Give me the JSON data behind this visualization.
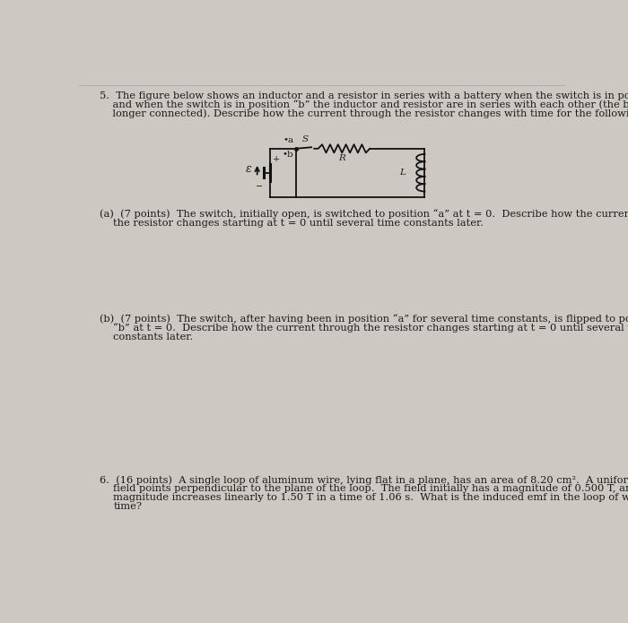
{
  "background_color": "#cdc9c2",
  "page_color": "#cdc9c2",
  "text_color": "#1a1a1a",
  "circuit_color": "#111111",
  "font_size_body": 8.2,
  "font_size_small": 7.5,
  "q5_line1": "5.  The figure below shows an inductor and a resistor in series with a battery when the switch is in position “a”",
  "q5_line2": "    and when the switch is in position “b” the inductor and resistor are in series with each other (the battery is no",
  "q5_line3": "    longer connected). Describe how the current through the resistor changes with time for the following situations:",
  "part_a": "(a)  (7 points)  The switch, initially open, is switched to position “a” at t = 0.  Describe how the current through\n    the resistor changes starting at t = 0 until several time constants later.",
  "part_b_1": "(b)  (7 points)  The switch, after having been in position “a” for several time constants, is flipped to position",
  "part_b_2": "    “b” at t = 0.  Describe how the current through the resistor changes starting at t = 0 until several time",
  "part_b_3": "    constants later.",
  "q6_1": "6.  (16 points)  A single loop of aluminum wire, lying flat in a plane, has an area of 8.20 cm².  A uniform magnetic",
  "q6_2": "    field points perpendicular to the plane of the loop.  The field initially has a magnitude of 0.500 T, and the",
  "q6_3": "    magnitude increases linearly to 1.50 T in a time of 1.06 s.  What is the induced emf in the loop of wire over this",
  "q6_4": "    time?"
}
